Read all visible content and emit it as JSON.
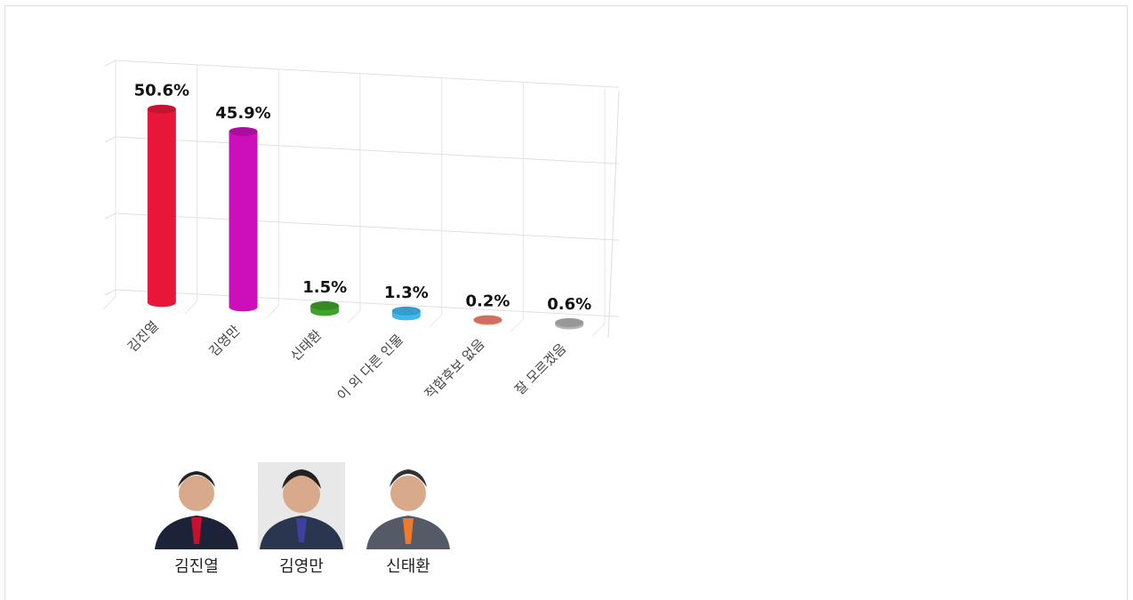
{
  "chart_data": {
    "type": "bar3d",
    "categories": [
      "김진열",
      "김영만",
      "신태환",
      "이 외 다른 인물",
      "적합후보 없음",
      "잘 모르겠음"
    ],
    "values": [
      50.6,
      45.9,
      1.5,
      1.3,
      0.2,
      0.6
    ],
    "value_labels": [
      "50.6%",
      "45.9%",
      "1.5%",
      "1.3%",
      "0.2%",
      "0.6%"
    ],
    "colors": [
      "#e8173a",
      "#cc0fbb",
      "#3ea329",
      "#3fb8ef",
      "#f3846f",
      "#b3b3b3"
    ],
    "ylim": [
      0,
      60
    ],
    "yticks": [
      0,
      20,
      40,
      60
    ],
    "grid": true
  },
  "candidates": [
    {
      "name": "김진열"
    },
    {
      "name": "김영만"
    },
    {
      "name": "신태환"
    }
  ]
}
